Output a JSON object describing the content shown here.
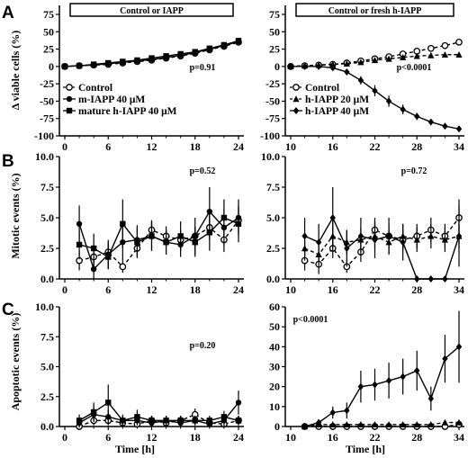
{
  "panels": [
    {
      "letter": "A",
      "ylabel": "Δ viable cells (%)"
    },
    {
      "letter": "B",
      "ylabel": "Mitotic events (%)"
    },
    {
      "letter": "C",
      "ylabel": "Apoptotic events (%)"
    }
  ],
  "xlabel": "Time [h]",
  "chart_data": [
    {
      "id": "A-left",
      "type": "line",
      "box_title": "Control or IAPP",
      "p_value": "p=0.91",
      "ylabel": "Δ viable cells (%)",
      "xlabel": "",
      "xlim": [
        0,
        24
      ],
      "xticks": [
        0,
        6,
        12,
        18,
        24
      ],
      "ylim": [
        -100,
        75
      ],
      "yticks": [
        75,
        50,
        25,
        0,
        -25,
        -50,
        -75,
        -100
      ],
      "legend_position": "bottom-left",
      "series": [
        {
          "name": "Control",
          "marker": "open-circle",
          "dash": "dashed",
          "x": [
            0,
            2,
            4,
            6,
            8,
            10,
            12,
            14,
            16,
            18,
            20,
            22,
            24
          ],
          "y": [
            0,
            1,
            2,
            3,
            5,
            7,
            9,
            12,
            15,
            19,
            24,
            29,
            35
          ],
          "err": [
            1,
            1,
            1,
            1,
            2,
            2,
            2,
            2,
            3,
            3,
            3,
            4,
            4
          ]
        },
        {
          "name": "m-IAPP 40 μM",
          "marker": "filled-circle",
          "dash": "solid",
          "x": [
            0,
            2,
            4,
            6,
            8,
            10,
            12,
            14,
            16,
            18,
            20,
            22,
            24
          ],
          "y": [
            0,
            1,
            2,
            4,
            6,
            8,
            10,
            13,
            16,
            20,
            25,
            30,
            36
          ],
          "err": [
            1,
            1,
            1,
            1,
            2,
            2,
            2,
            2,
            3,
            3,
            3,
            4,
            4
          ]
        },
        {
          "name": "mature h-IAPP 40 μM",
          "marker": "filled-square",
          "dash": "solid",
          "x": [
            0,
            2,
            4,
            6,
            8,
            10,
            12,
            14,
            16,
            18,
            20,
            22,
            24
          ],
          "y": [
            0,
            1,
            3,
            5,
            7,
            9,
            12,
            15,
            18,
            21,
            26,
            31,
            37
          ],
          "err": [
            1,
            1,
            1,
            1,
            2,
            2,
            2,
            2,
            3,
            3,
            3,
            4,
            4
          ]
        }
      ]
    },
    {
      "id": "A-right",
      "type": "line",
      "box_title": "Control or fresh h-IAPP",
      "p_value": "p<0.0001",
      "ylabel": "",
      "xlabel": "",
      "xlim": [
        10,
        34
      ],
      "xticks": [
        10,
        16,
        22,
        28,
        34
      ],
      "ylim": [
        -100,
        75
      ],
      "yticks": [
        75,
        50,
        25,
        0,
        -25,
        -50,
        -75,
        -100
      ],
      "legend_position": "bottom-left",
      "series": [
        {
          "name": "Control",
          "marker": "open-circle",
          "dash": "dashed",
          "x": [
            10,
            12,
            14,
            16,
            18,
            20,
            22,
            24,
            26,
            28,
            30,
            32,
            34
          ],
          "y": [
            0,
            1,
            2,
            3,
            5,
            8,
            11,
            14,
            18,
            22,
            26,
            30,
            35
          ],
          "err": [
            1,
            1,
            1,
            1,
            1,
            2,
            2,
            2,
            2,
            3,
            3,
            3,
            3
          ]
        },
        {
          "name": "h-IAPP 20 μM",
          "marker": "filled-triangle",
          "dash": "dashed",
          "x": [
            10,
            12,
            14,
            16,
            18,
            20,
            22,
            24,
            26,
            28,
            30,
            32,
            34
          ],
          "y": [
            0,
            1,
            2,
            3,
            4,
            6,
            9,
            11,
            13,
            15,
            16,
            17,
            17
          ],
          "err": [
            1,
            1,
            1,
            1,
            1,
            2,
            2,
            2,
            2,
            2,
            2,
            2,
            2
          ]
        },
        {
          "name": "h-IAPP 40 μM",
          "marker": "filled-diamond",
          "dash": "solid",
          "x": [
            10,
            12,
            14,
            16,
            18,
            20,
            22,
            24,
            26,
            28,
            30,
            32,
            34
          ],
          "y": [
            0,
            0,
            0,
            -2,
            -8,
            -20,
            -35,
            -50,
            -62,
            -72,
            -80,
            -86,
            -90
          ],
          "err": [
            1,
            1,
            1,
            2,
            4,
            6,
            8,
            8,
            7,
            5,
            4,
            3,
            3
          ]
        }
      ]
    },
    {
      "id": "B-left",
      "type": "line",
      "p_value": "p=0.52",
      "ylabel": "Mitotic events (%)",
      "xlabel": "",
      "xlim": [
        0,
        24
      ],
      "xticks": [
        0,
        6,
        12,
        18,
        24
      ],
      "ylim": [
        0,
        10
      ],
      "yticks": [
        0.0,
        2.5,
        5.0,
        7.5,
        10.0
      ],
      "series": [
        {
          "name": "Control",
          "marker": "open-circle",
          "dash": "dashed",
          "x": [
            2,
            4,
            6,
            8,
            10,
            12,
            14,
            16,
            18,
            20,
            22,
            24
          ],
          "y": [
            1.5,
            1.8,
            2.2,
            1.0,
            2.5,
            4.0,
            3.5,
            3.2,
            3.5,
            4.2,
            3.2,
            4.8
          ],
          "err": [
            0.8,
            0.8,
            0.8,
            0.5,
            0.8,
            0.8,
            0.8,
            0.8,
            0.8,
            1.0,
            1.0,
            1.0
          ]
        },
        {
          "name": "m-IAPP 40 μM",
          "marker": "filled-circle",
          "dash": "solid",
          "x": [
            2,
            4,
            6,
            8,
            10,
            12,
            14,
            16,
            18,
            20,
            22,
            24
          ],
          "y": [
            4.5,
            0.8,
            2.0,
            3.0,
            3.2,
            3.5,
            3.0,
            2.8,
            3.5,
            5.5,
            4.2,
            5.0
          ],
          "err": [
            1.5,
            0.8,
            1.2,
            1.5,
            1.2,
            1.2,
            1.0,
            1.0,
            1.5,
            2.0,
            1.5,
            1.5
          ]
        },
        {
          "name": "mature h-IAPP 40 μM",
          "marker": "filled-square",
          "dash": "solid",
          "x": [
            2,
            4,
            6,
            8,
            10,
            12,
            14,
            16,
            18,
            20,
            22,
            24
          ],
          "y": [
            2.8,
            2.5,
            1.8,
            4.5,
            3.0,
            3.5,
            3.0,
            3.5,
            3.0,
            3.8,
            5.0,
            4.5
          ],
          "err": [
            1.2,
            1.2,
            1.0,
            2.0,
            1.2,
            1.2,
            1.0,
            1.2,
            1.2,
            1.5,
            1.5,
            1.5
          ]
        }
      ]
    },
    {
      "id": "B-right",
      "type": "line",
      "p_value": "p=0.72",
      "ylabel": "",
      "xlabel": "",
      "xlim": [
        10,
        34
      ],
      "xticks": [
        10,
        16,
        22,
        28,
        34
      ],
      "ylim": [
        0,
        10
      ],
      "yticks": [
        0.0,
        2.5,
        5.0,
        7.5,
        10.0
      ],
      "series": [
        {
          "name": "Control",
          "marker": "open-circle",
          "dash": "dashed",
          "x": [
            12,
            14,
            16,
            18,
            20,
            22,
            24,
            26,
            28,
            30,
            32,
            34
          ],
          "y": [
            1.5,
            1.2,
            2.5,
            1.0,
            2.2,
            4.0,
            3.5,
            3.2,
            3.5,
            4.0,
            3.5,
            5.0
          ],
          "err": [
            0.8,
            0.8,
            0.8,
            0.5,
            0.8,
            1.0,
            1.0,
            0.8,
            1.0,
            1.0,
            1.0,
            1.5
          ]
        },
        {
          "name": "h-IAPP 20 μM",
          "marker": "filled-triangle",
          "dash": "dashed",
          "x": [
            12,
            14,
            16,
            18,
            20,
            22,
            24,
            26,
            28,
            30,
            32,
            34
          ],
          "y": [
            2.5,
            2.0,
            3.5,
            3.0,
            3.2,
            3.5,
            3.0,
            3.5,
            3.2,
            3.5,
            3.2,
            3.5
          ],
          "err": [
            1.0,
            1.0,
            1.2,
            1.0,
            1.0,
            1.0,
            1.0,
            1.0,
            1.0,
            1.0,
            1.0,
            1.0
          ]
        },
        {
          "name": "h-IAPP 40 μM",
          "marker": "filled-diamond",
          "dash": "solid",
          "x": [
            12,
            14,
            16,
            18,
            20,
            22,
            24,
            26,
            28,
            30,
            32,
            34
          ],
          "y": [
            3.5,
            3.0,
            5.0,
            2.5,
            3.5,
            3.2,
            3.5,
            3.0,
            0.0,
            0.0,
            0.0,
            3.5
          ],
          "err": [
            1.5,
            1.5,
            2.5,
            1.5,
            1.5,
            1.5,
            1.5,
            1.5,
            0.0,
            0.0,
            0.0,
            2.5
          ]
        }
      ]
    },
    {
      "id": "C-left",
      "type": "line",
      "p_value": "p=0.20",
      "ylabel": "Apoptotic events (%)",
      "xlabel": "Time [h]",
      "xlim": [
        0,
        24
      ],
      "xticks": [
        0,
        6,
        12,
        18,
        24
      ],
      "ylim": [
        0,
        10
      ],
      "yticks": [
        0.0,
        2.5,
        5.0,
        7.5,
        10.0
      ],
      "series": [
        {
          "name": "Control",
          "marker": "open-circle",
          "dash": "dashed",
          "x": [
            2,
            4,
            6,
            8,
            10,
            12,
            14,
            16,
            18,
            20,
            22,
            24
          ],
          "y": [
            0.0,
            0.5,
            0.5,
            0.3,
            0.2,
            0.5,
            0.3,
            0.5,
            1.0,
            0.3,
            0.2,
            0.5
          ],
          "err": [
            0.3,
            0.4,
            0.4,
            0.3,
            0.3,
            0.4,
            0.3,
            0.4,
            0.5,
            0.3,
            0.3,
            0.4
          ]
        },
        {
          "name": "m-IAPP 40 μM",
          "marker": "filled-circle",
          "dash": "solid",
          "x": [
            2,
            4,
            6,
            8,
            10,
            12,
            14,
            16,
            18,
            20,
            22,
            24
          ],
          "y": [
            0.3,
            1.0,
            0.8,
            0.5,
            0.5,
            0.3,
            0.5,
            0.3,
            0.5,
            0.2,
            0.5,
            2.0
          ],
          "err": [
            0.4,
            0.6,
            0.6,
            0.4,
            0.4,
            0.3,
            0.4,
            0.3,
            0.4,
            0.3,
            0.5,
            1.0
          ]
        },
        {
          "name": "mature h-IAPP 40 μM",
          "marker": "filled-square",
          "dash": "solid",
          "x": [
            2,
            4,
            6,
            8,
            10,
            12,
            14,
            16,
            18,
            20,
            22,
            24
          ],
          "y": [
            0.5,
            1.2,
            2.0,
            0.5,
            0.8,
            0.5,
            0.5,
            0.5,
            0.5,
            0.5,
            0.8,
            0.5
          ],
          "err": [
            0.5,
            0.8,
            1.5,
            0.5,
            0.6,
            0.4,
            0.4,
            0.4,
            0.4,
            0.4,
            0.5,
            0.4
          ]
        }
      ]
    },
    {
      "id": "C-right",
      "type": "line",
      "p_value": "p<0.0001",
      "ylabel": "",
      "xlabel": "Time [h]",
      "xlim": [
        10,
        34
      ],
      "xticks": [
        10,
        16,
        22,
        28,
        34
      ],
      "ylim": [
        0,
        60
      ],
      "yticks": [
        0,
        10,
        20,
        30,
        40,
        50,
        60
      ],
      "series": [
        {
          "name": "Control",
          "marker": "open-circle",
          "dash": "dashed",
          "x": [
            12,
            14,
            16,
            18,
            20,
            22,
            24,
            26,
            28,
            30,
            32,
            34
          ],
          "y": [
            0,
            0,
            0,
            0,
            0,
            0,
            0,
            0,
            0,
            0,
            0,
            1
          ],
          "err": [
            0.5,
            0.5,
            0.5,
            0.5,
            0.5,
            0.5,
            0.5,
            0.5,
            0.5,
            0.5,
            0.5,
            0.8
          ]
        },
        {
          "name": "h-IAPP 20 μM",
          "marker": "filled-triangle",
          "dash": "dashed",
          "x": [
            12,
            14,
            16,
            18,
            20,
            22,
            24,
            26,
            28,
            30,
            32,
            34
          ],
          "y": [
            0,
            1,
            1,
            1,
            1,
            1,
            1,
            1,
            1,
            1,
            2,
            2
          ],
          "err": [
            0.5,
            0.8,
            0.8,
            0.8,
            0.8,
            0.8,
            0.8,
            0.8,
            0.8,
            0.8,
            1.0,
            1.0
          ]
        },
        {
          "name": "h-IAPP 40 μM",
          "marker": "filled-diamond",
          "dash": "solid",
          "x": [
            12,
            14,
            16,
            18,
            20,
            22,
            24,
            26,
            28,
            30,
            32,
            34
          ],
          "y": [
            0,
            2,
            7,
            8,
            20,
            21,
            23,
            25,
            28,
            14,
            34,
            40
          ],
          "err": [
            0.5,
            1.5,
            3,
            4,
            8,
            8,
            9,
            9,
            10,
            6,
            12,
            18
          ]
        }
      ]
    }
  ]
}
